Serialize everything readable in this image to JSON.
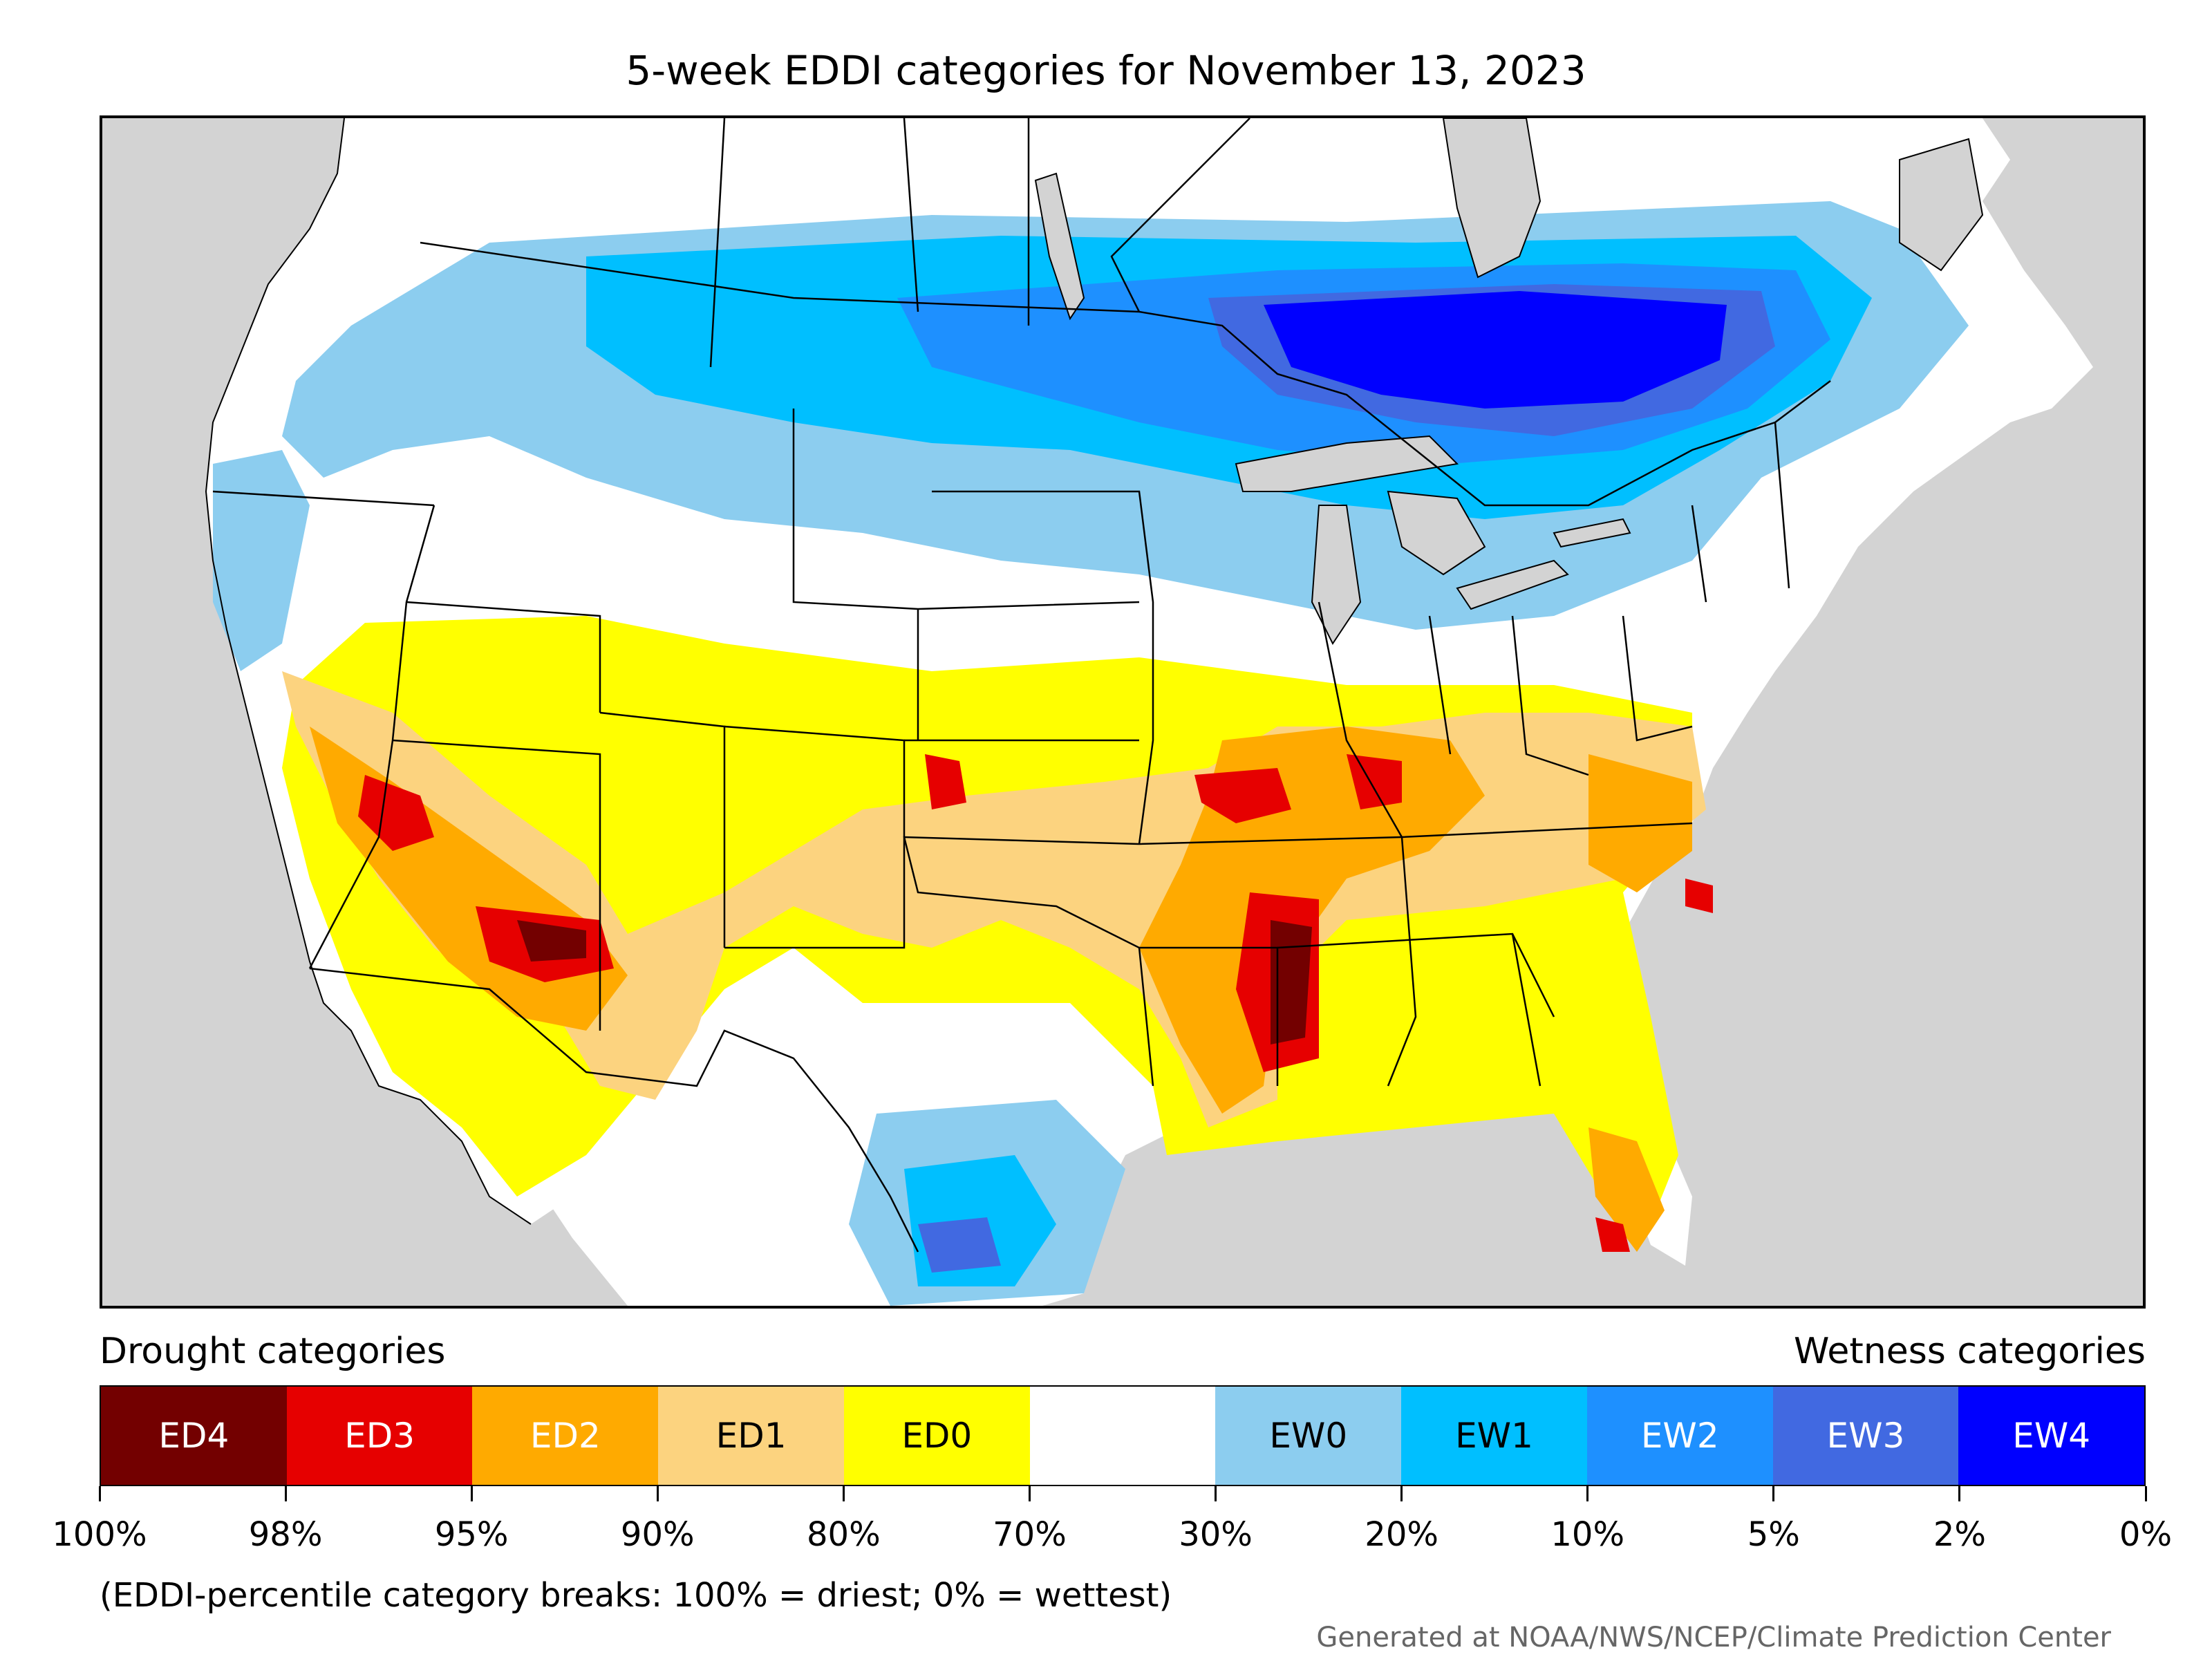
{
  "title": "5-week EDDI categories for November 13, 2023",
  "map": {
    "region": "Continental United States",
    "colors": {
      "ocean": "#d3d3d3",
      "ED4": "#730000",
      "ED3": "#e60000",
      "ED2": "#ffaa00",
      "ED1": "#fcd37f",
      "ED0": "#ffff00",
      "neutral": "#ffffff",
      "EW0": "#8ccdef",
      "EW1": "#00bfff",
      "EW2": "#1e90ff",
      "EW3": "#4169e1",
      "EW4": "#0000ff"
    }
  },
  "legend": {
    "drought_heading": "Drought categories",
    "wetness_heading": "Wetness categories",
    "categories": [
      {
        "label": "ED4",
        "color": "#730000",
        "text_color": "#ffffff"
      },
      {
        "label": "ED3",
        "color": "#e60000",
        "text_color": "#ffffff"
      },
      {
        "label": "ED2",
        "color": "#ffaa00",
        "text_color": "#ffffff"
      },
      {
        "label": "ED1",
        "color": "#fcd37f",
        "text_color": "#000000"
      },
      {
        "label": "ED0",
        "color": "#ffff00",
        "text_color": "#000000"
      },
      {
        "label": "",
        "color": "#ffffff",
        "text_color": "#000000"
      },
      {
        "label": "EW0",
        "color": "#8ccdef",
        "text_color": "#000000"
      },
      {
        "label": "EW1",
        "color": "#00bfff",
        "text_color": "#000000"
      },
      {
        "label": "EW2",
        "color": "#1e90ff",
        "text_color": "#ffffff"
      },
      {
        "label": "EW3",
        "color": "#4169e1",
        "text_color": "#ffffff"
      },
      {
        "label": "EW4",
        "color": "#0000ff",
        "text_color": "#ffffff"
      }
    ],
    "ticks": [
      "100%",
      "98%",
      "95%",
      "90%",
      "80%",
      "70%",
      "30%",
      "20%",
      "10%",
      "5%",
      "2%",
      "0%"
    ]
  },
  "note": "(EDDI-percentile category breaks: 100% = driest; 0% = wettest)",
  "credit": "Generated at NOAA/NWS/NCEP/Climate Prediction Center"
}
